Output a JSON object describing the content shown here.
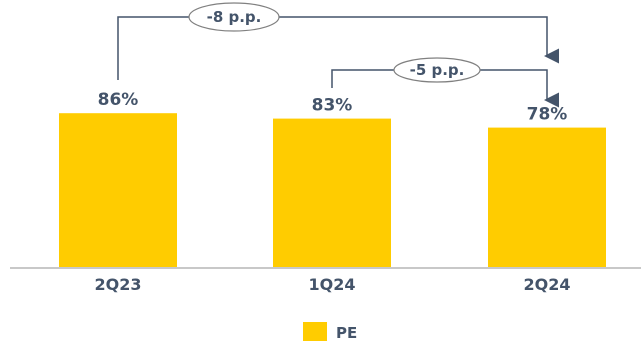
{
  "chart_data": {
    "type": "bar",
    "categories": [
      "2Q23",
      "1Q24",
      "2Q24"
    ],
    "series": [
      {
        "name": "PE",
        "values": [
          86,
          83,
          78
        ],
        "labels": [
          "86%",
          "83%",
          "78%"
        ]
      }
    ],
    "ylim": [
      0,
      100
    ],
    "grid": false,
    "legend_position": "bottom-center",
    "annotations": [
      {
        "text": "-8 p.p.",
        "from": "2Q23",
        "to": "2Q24"
      },
      {
        "text": "-5 p.p.",
        "from": "1Q24",
        "to": "2Q24"
      }
    ]
  },
  "colors": {
    "bar": "#ffcc00",
    "text": "#44546a",
    "axis": "#c8c8c8",
    "annotation_line": "#44546a",
    "annotation_ellipse": "#808080"
  }
}
